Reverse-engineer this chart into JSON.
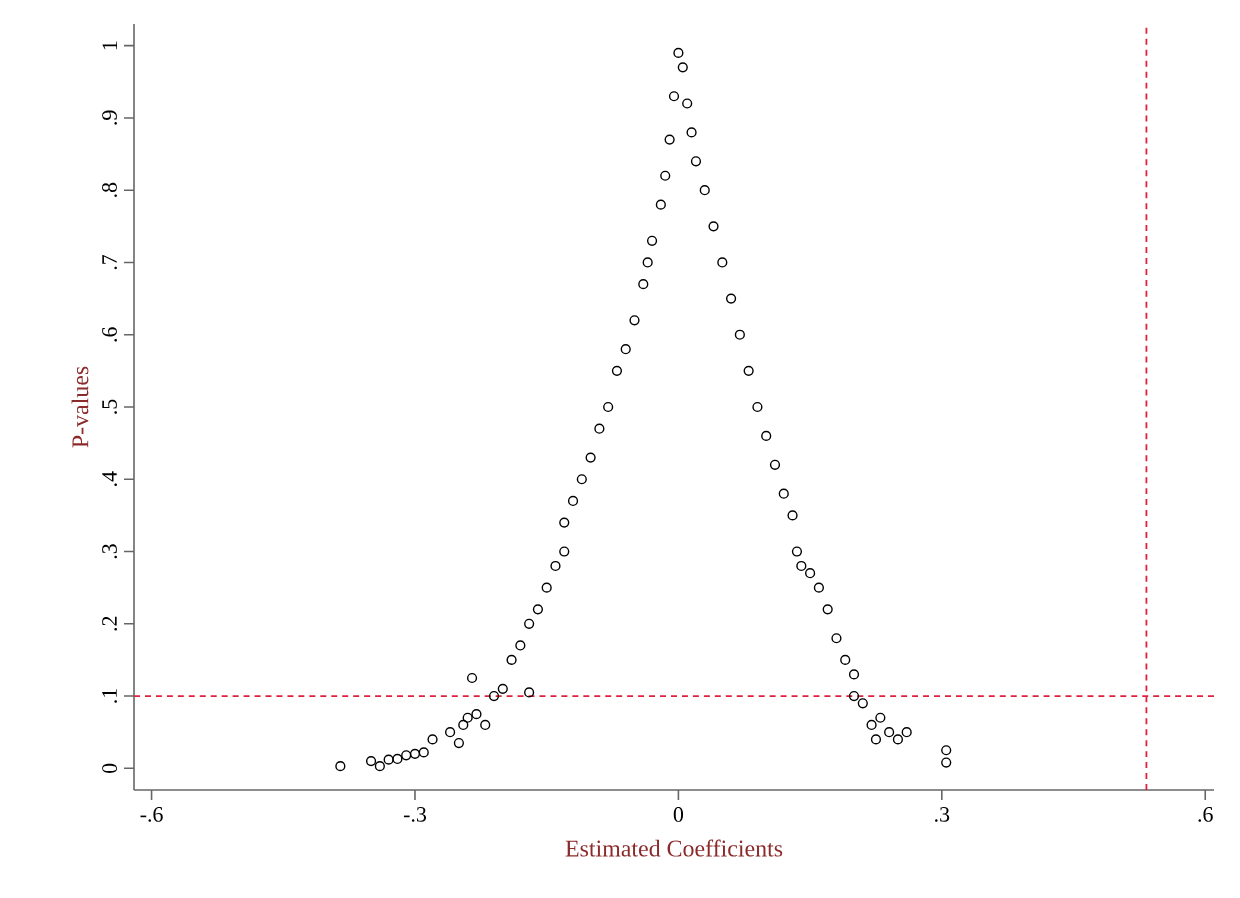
{
  "chart_data": {
    "type": "scatter",
    "xlabel": "Estimated Coefficients",
    "ylabel": "P-values",
    "xlim": [
      -0.62,
      0.61
    ],
    "ylim": [
      -0.03,
      1.03
    ],
    "xticks": [
      {
        "value": -0.6,
        "label": "-.6"
      },
      {
        "value": -0.3,
        "label": "-.3"
      },
      0,
      {
        "value": 0.3,
        "label": ".3"
      },
      {
        "value": 0.6,
        "label": ".6"
      }
    ],
    "yticks": [
      0,
      {
        "value": 0.1,
        "label": ".1"
      },
      {
        "value": 0.2,
        "label": ".2"
      },
      {
        "value": 0.3,
        "label": ".3"
      },
      {
        "value": 0.4,
        "label": ".4"
      },
      {
        "value": 0.5,
        "label": ".5"
      },
      {
        "value": 0.6,
        "label": ".6"
      },
      {
        "value": 0.7,
        "label": ".7"
      },
      {
        "value": 0.8,
        "label": ".8"
      },
      {
        "value": 0.9,
        "label": ".9"
      },
      1
    ],
    "marker": "circle",
    "ref_lines": [
      {
        "axis": "y",
        "value": 0.1,
        "color": "#e0203c",
        "line_style": "dashed"
      },
      {
        "axis": "x",
        "value": 0.533,
        "color": "#e0203c",
        "line_style": "dashed"
      }
    ],
    "series": [
      {
        "color": "#000000",
        "x": [
          -0.385,
          -0.35,
          -0.34,
          -0.33,
          -0.32,
          -0.31,
          -0.3,
          -0.29,
          -0.28,
          -0.26,
          -0.25,
          -0.245,
          -0.24,
          -0.23,
          -0.235,
          -0.22,
          -0.21,
          -0.2,
          -0.19,
          -0.18,
          -0.17,
          -0.17,
          -0.16,
          -0.15,
          -0.14,
          -0.13,
          -0.13,
          -0.12,
          -0.11,
          -0.1,
          -0.09,
          -0.08,
          -0.07,
          -0.06,
          -0.05,
          -0.04,
          -0.035,
          -0.03,
          -0.02,
          -0.015,
          -0.01,
          -0.005,
          0,
          0.005,
          0.01,
          0.015,
          0.02,
          0.03,
          0.04,
          0.05,
          0.06,
          0.07,
          0.08,
          0.09,
          0.1,
          0.11,
          0.12,
          0.13,
          0.135,
          0.14,
          0.15,
          0.16,
          0.17,
          0.18,
          0.19,
          0.2,
          0.2,
          0.21,
          0.22,
          0.225,
          0.23,
          0.24,
          0.25,
          0.26,
          0.305,
          0.305
        ],
        "values": [
          0.003,
          0.01,
          0.003,
          0.012,
          0.013,
          0.018,
          0.02,
          0.022,
          0.04,
          0.05,
          0.035,
          0.06,
          0.07,
          0.075,
          0.125,
          0.06,
          0.1,
          0.11,
          0.15,
          0.17,
          0.105,
          0.2,
          0.22,
          0.25,
          0.28,
          0.3,
          0.34,
          0.37,
          0.4,
          0.43,
          0.47,
          0.5,
          0.55,
          0.58,
          0.62,
          0.67,
          0.7,
          0.73,
          0.78,
          0.82,
          0.87,
          0.93,
          0.99,
          0.97,
          0.92,
          0.88,
          0.84,
          0.8,
          0.75,
          0.7,
          0.65,
          0.6,
          0.55,
          0.5,
          0.46,
          0.42,
          0.38,
          0.35,
          0.3,
          0.28,
          0.27,
          0.25,
          0.22,
          0.18,
          0.15,
          0.13,
          0.1,
          0.09,
          0.06,
          0.04,
          0.07,
          0.05,
          0.04,
          0.05,
          0.025,
          0.008
        ]
      }
    ]
  }
}
